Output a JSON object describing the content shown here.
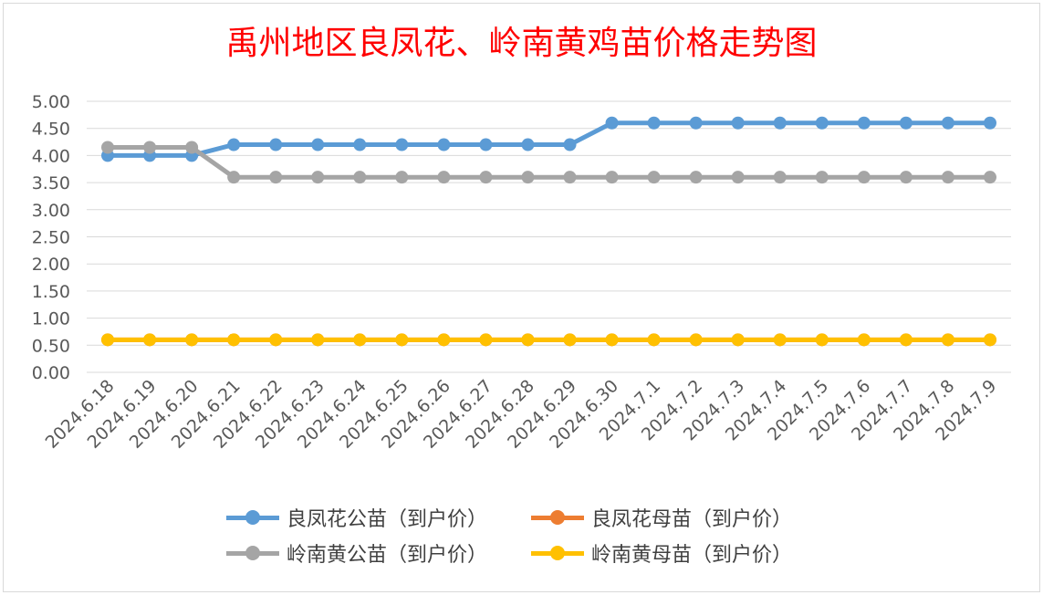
{
  "chart_data": {
    "type": "line",
    "title": "禹州地区良凤花、岭南黄鸡苗价格走势图",
    "categories": [
      "2024.6.18",
      "2024.6.19",
      "2024.6.20",
      "2024.6.21",
      "2024.6.22",
      "2024.6.23",
      "2024.6.24",
      "2024.6.25",
      "2024.6.26",
      "2024.6.27",
      "2024.6.28",
      "2024.6.29",
      "2024.6.30",
      "2024.7.1",
      "2024.7.2",
      "2024.7.3",
      "2024.7.4",
      "2024.7.5",
      "2024.7.6",
      "2024.7.7",
      "2024.7.8",
      "2024.7.9"
    ],
    "y_ticks": [
      "0.00",
      "0.50",
      "1.00",
      "1.50",
      "2.00",
      "2.50",
      "3.00",
      "3.50",
      "4.00",
      "4.50",
      "5.00"
    ],
    "ylim": [
      0,
      5
    ],
    "grid": true,
    "legend_position": "bottom",
    "series": [
      {
        "name": "良凤花公苗（到户价）",
        "color": "#5b9bd5",
        "values": [
          4.0,
          4.0,
          4.0,
          4.2,
          4.2,
          4.2,
          4.2,
          4.2,
          4.2,
          4.2,
          4.2,
          4.2,
          4.6,
          4.6,
          4.6,
          4.6,
          4.6,
          4.6,
          4.6,
          4.6,
          4.6,
          4.6
        ]
      },
      {
        "name": "良凤花母苗（到户价）",
        "color": "#ed7d31",
        "values": [
          0.6,
          0.6,
          0.6,
          0.6,
          0.6,
          0.6,
          0.6,
          0.6,
          0.6,
          0.6,
          0.6,
          0.6,
          0.6,
          0.6,
          0.6,
          0.6,
          0.6,
          0.6,
          0.6,
          0.6,
          0.6,
          0.6
        ]
      },
      {
        "name": "岭南黄公苗（到户价）",
        "color": "#a5a5a5",
        "values": [
          4.15,
          4.15,
          4.15,
          3.6,
          3.6,
          3.6,
          3.6,
          3.6,
          3.6,
          3.6,
          3.6,
          3.6,
          3.6,
          3.6,
          3.6,
          3.6,
          3.6,
          3.6,
          3.6,
          3.6,
          3.6,
          3.6
        ]
      },
      {
        "name": "岭南黄母苗（到户价）",
        "color": "#ffc000",
        "values": [
          0.6,
          0.6,
          0.6,
          0.6,
          0.6,
          0.6,
          0.6,
          0.6,
          0.6,
          0.6,
          0.6,
          0.6,
          0.6,
          0.6,
          0.6,
          0.6,
          0.6,
          0.6,
          0.6,
          0.6,
          0.6,
          0.6
        ]
      }
    ]
  }
}
